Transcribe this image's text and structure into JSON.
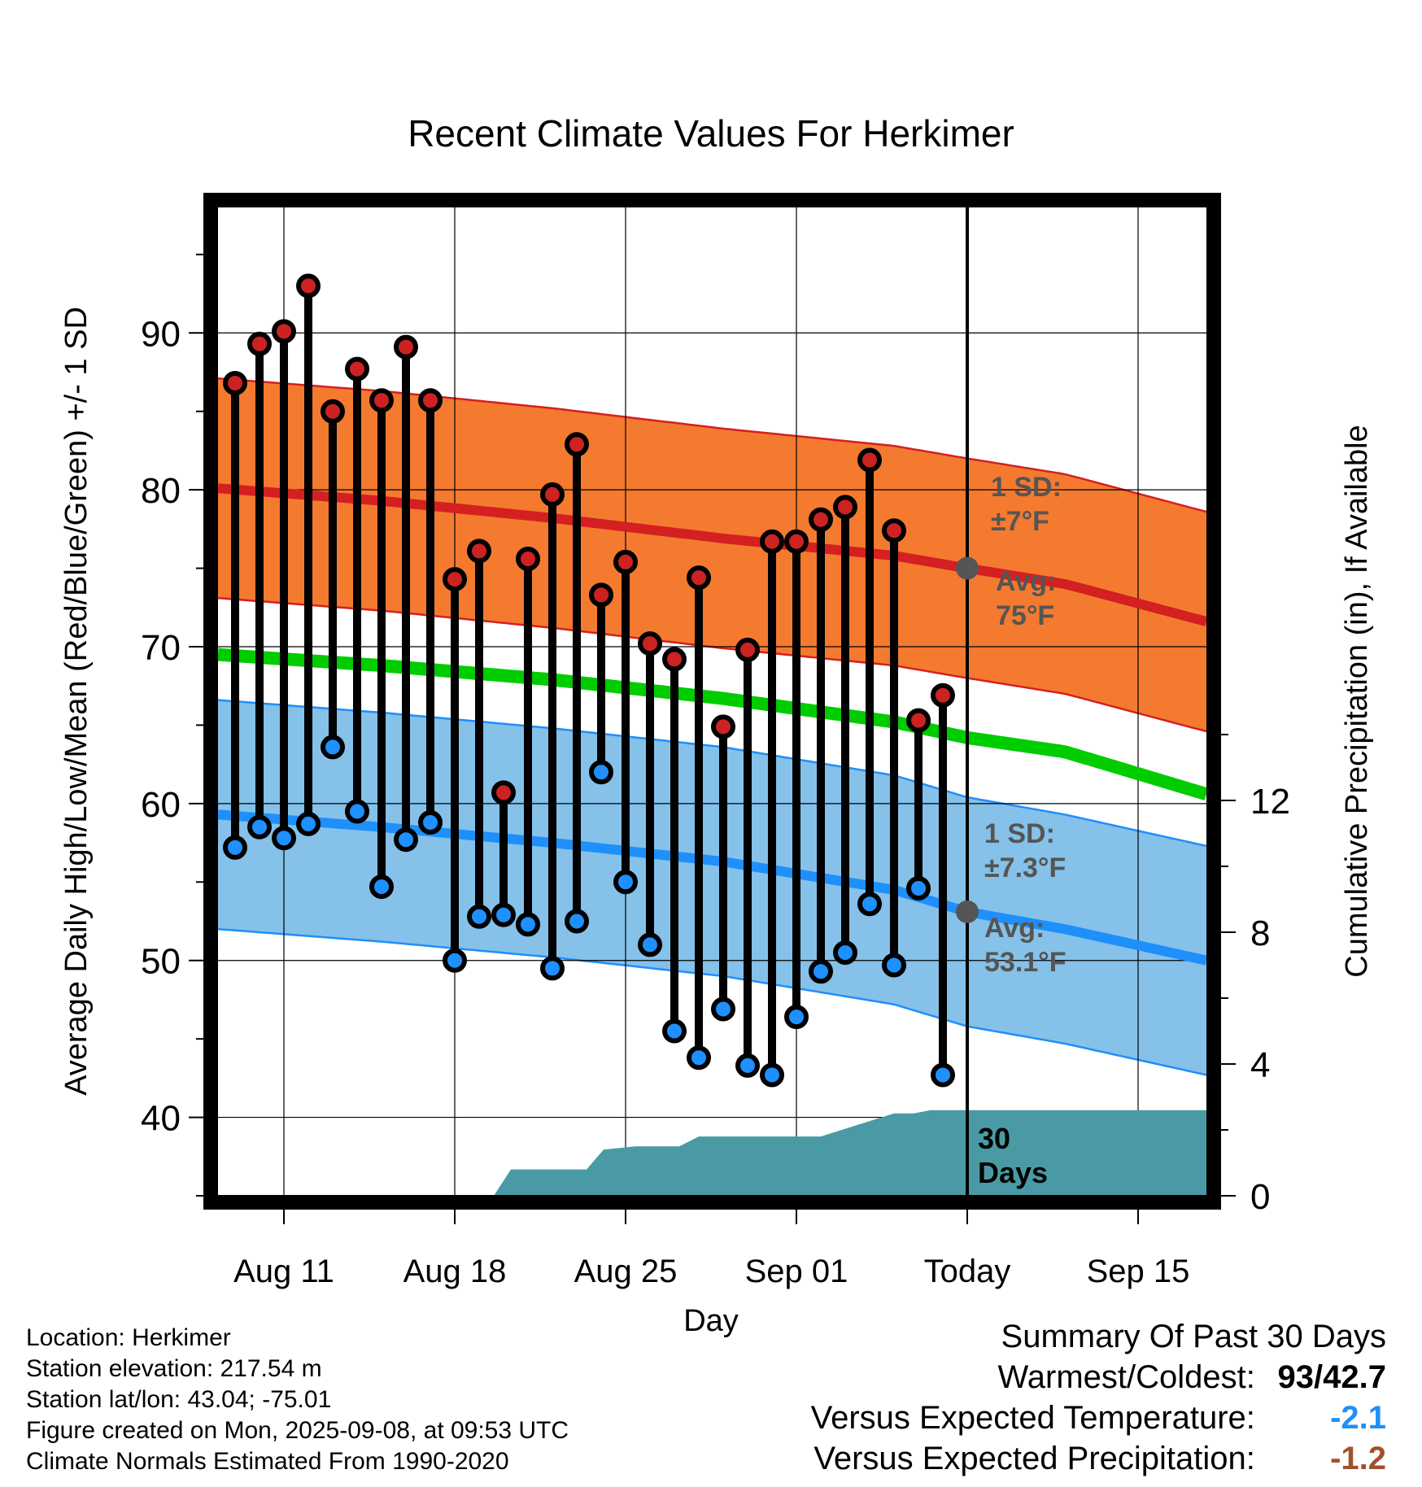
{
  "chart_data": {
    "type": "line",
    "title": "Recent Climate Values For Herkimer",
    "xlabel": "Day",
    "ylabel": "Average Daily High/Low/Mean (Red/Blue/Green) +/- 1 SD",
    "y2label": "Cumulative Precipitation (in), If Available",
    "ylim": [
      35,
      98
    ],
    "y2lim": [
      0,
      30
    ],
    "yticks": [
      40,
      50,
      60,
      70,
      80,
      90
    ],
    "y2ticks": [
      0,
      4,
      8,
      12
    ],
    "x_tick_labels": [
      "Aug 11",
      "Aug 18",
      "Aug 25",
      "Sep 01",
      "Today",
      "Sep 15"
    ],
    "x_tick_days": [
      3,
      10,
      17,
      24,
      31,
      38
    ],
    "x_range_days": [
      0.3,
      40.8
    ],
    "today_day": 31,
    "grid": true,
    "series": [
      {
        "name": "High",
        "color": "#cc2222",
        "values": [
          86.8,
          89.3,
          90.1,
          93.0,
          85.0,
          87.7,
          85.7,
          89.1,
          85.7,
          74.3,
          76.1,
          60.7,
          75.6,
          79.7,
          82.9,
          73.3,
          75.4,
          70.2,
          69.2,
          74.4,
          64.9,
          69.8,
          76.7,
          76.7,
          78.1,
          78.9,
          81.9,
          77.4,
          65.3,
          66.9
        ]
      },
      {
        "name": "Low",
        "color": "#1e90ff",
        "values": [
          57.2,
          58.5,
          57.8,
          58.7,
          63.6,
          59.5,
          54.7,
          57.7,
          58.8,
          50.0,
          52.8,
          52.9,
          52.3,
          49.5,
          52.5,
          62.0,
          55.0,
          51.0,
          45.5,
          43.8,
          46.9,
          43.3,
          42.7,
          46.4,
          49.3,
          50.5,
          53.6,
          49.7,
          54.6,
          42.7
        ]
      }
    ],
    "days": [
      1,
      2,
      3,
      4,
      5,
      6,
      7,
      8,
      9,
      10,
      11,
      12,
      13,
      14,
      15,
      16,
      17,
      18,
      19,
      20,
      21,
      22,
      23,
      24,
      25,
      26,
      27,
      28,
      29,
      30
    ],
    "normals": {
      "days": [
        0.3,
        7,
        14,
        21,
        28,
        31,
        35,
        40.8
      ],
      "high_avg": [
        80.1,
        79.3,
        78.2,
        76.9,
        75.8,
        75.0,
        74.0,
        71.6
      ],
      "high_sd": 7,
      "mean_avg": [
        69.5,
        68.8,
        67.9,
        66.7,
        65.2,
        64.2,
        63.3,
        60.6
      ],
      "low_avg": [
        59.3,
        58.5,
        57.5,
        56.3,
        54.5,
        53.1,
        52.0,
        50.0
      ],
      "low_sd": 7.3
    },
    "precipitation": {
      "days": [
        0.3,
        11.6,
        12.3,
        15.4,
        16.1,
        17.4,
        19.2,
        20.0,
        25.0,
        28.0,
        28.8,
        29.5,
        40.8
      ],
      "values": [
        0,
        0,
        0.8,
        0.8,
        1.4,
        1.5,
        1.5,
        1.8,
        1.8,
        2.5,
        2.5,
        2.6,
        2.6
      ]
    },
    "annotations": {
      "high_sd_label": "1 SD:",
      "high_sd_value": "±7°F",
      "high_avg_label": "Avg:",
      "high_avg_value": "75°F",
      "low_sd_label": "1 SD:",
      "low_sd_value": "±7.3°F",
      "low_avg_label": "Avg:",
      "low_avg_value": "53.1°F",
      "precip_label_line1": "30",
      "precip_label_line2": "Days"
    },
    "colors": {
      "high_band": "#f47a30",
      "high_line": "#d42020",
      "mean_line": "#00cc00",
      "low_band": "#85c1e9",
      "low_line": "#1e8ffb",
      "precip": "#4a9aa5",
      "marker_edge": "#000000",
      "annotation": "#555555"
    }
  },
  "info": {
    "location": "Location: Herkimer",
    "elevation": "Station elevation: 217.54 m",
    "latlon": "Station lat/lon: 43.04; -75.01",
    "created": "Figure created on Mon, 2025-09-08, at 09:53 UTC",
    "normals": "Climate Normals Estimated From 1990-2020"
  },
  "summary": {
    "title": "Summary Of Past 30 Days",
    "warm_label": "Warmest/Coldest:",
    "warm_value_high": "93",
    "warm_value_sep": "/",
    "warm_value_low": "42.7",
    "temp_label": "Versus Expected Temperature:",
    "temp_value": "-2.1",
    "temp_color": "#1e8ffb",
    "precip_label": "Versus Expected Precipitation:",
    "precip_value": "-1.2",
    "precip_color": "#a0522d"
  }
}
